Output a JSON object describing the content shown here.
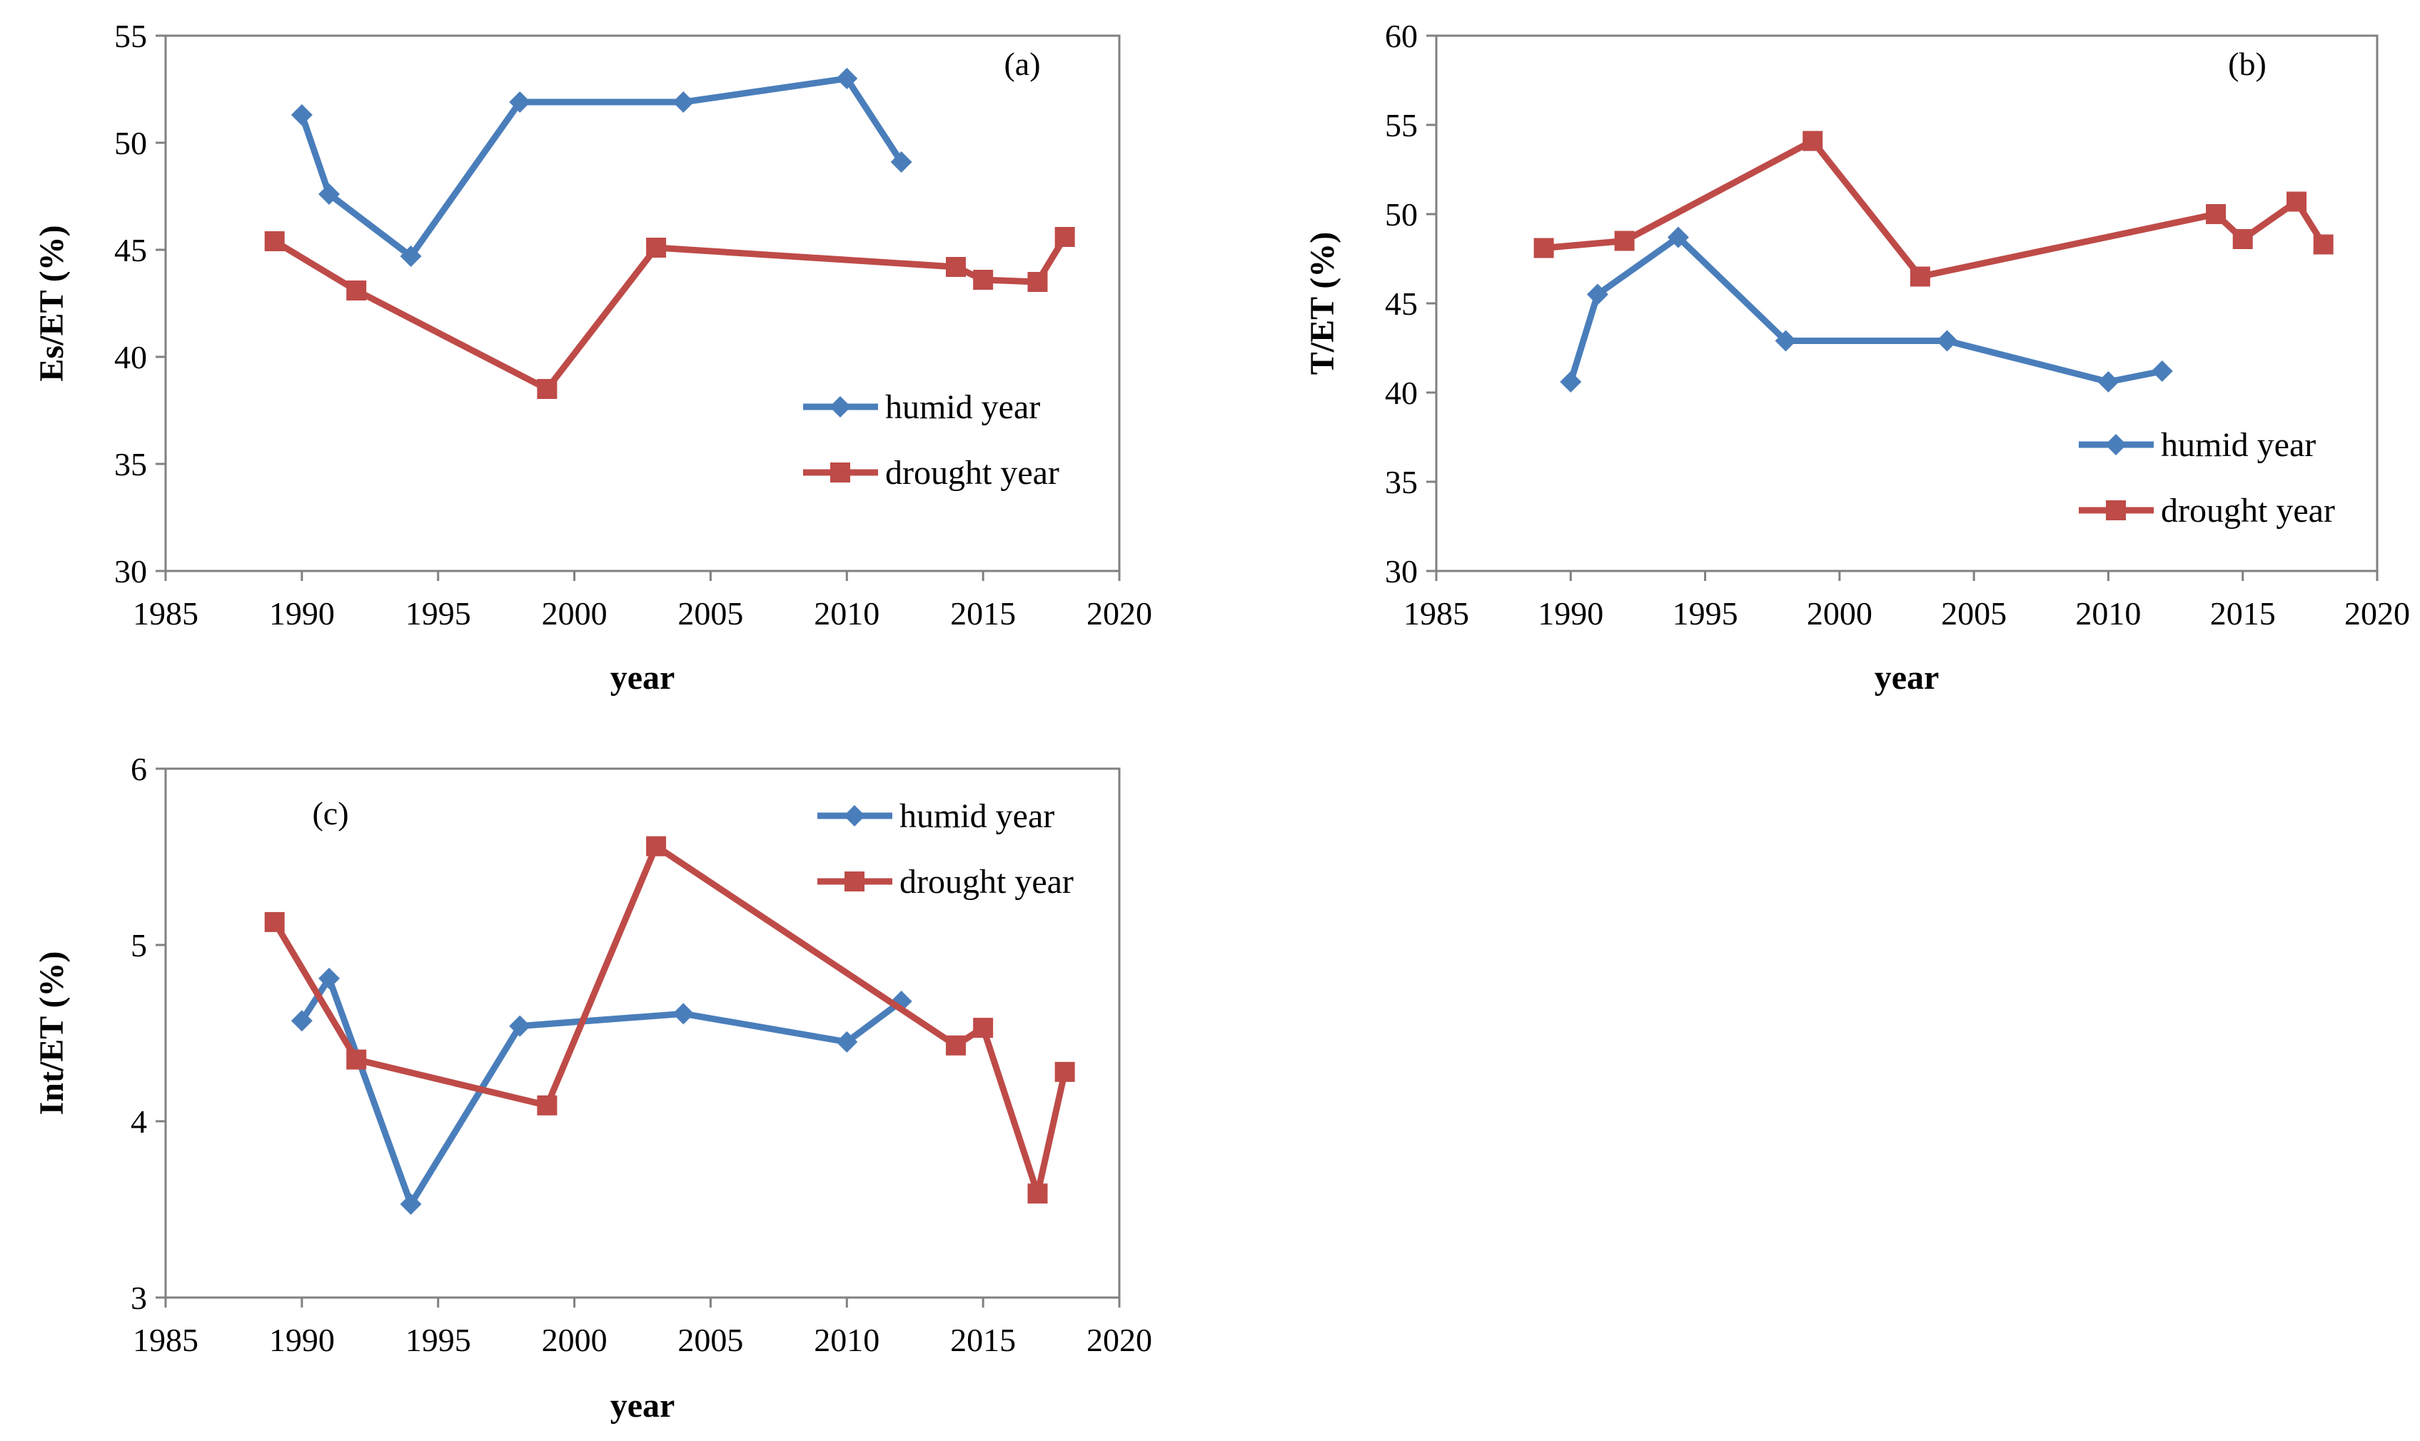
{
  "chart_data": [
    {
      "type": "line",
      "panel_label": "(a)",
      "xlabel": "year",
      "ylabel": "Es/ET (%)",
      "xlim": [
        1985,
        2020
      ],
      "ylim": [
        30,
        55
      ],
      "xticks": [
        1985,
        1990,
        1995,
        2000,
        2005,
        2010,
        2015,
        2020
      ],
      "yticks": [
        30,
        35,
        40,
        45,
        50,
        55
      ],
      "legend_position": "bottom-right",
      "series": [
        {
          "name": "humid year",
          "color": "#4a7ebb",
          "marker": "diamond",
          "x": [
            1990,
            1991,
            1994,
            1998,
            2004,
            2010,
            2012
          ],
          "y": [
            51.3,
            47.6,
            44.7,
            51.9,
            51.9,
            53.0,
            49.1
          ]
        },
        {
          "name": "drought year",
          "color": "#be4b48",
          "marker": "square",
          "x": [
            1989,
            1992,
            1999,
            2003,
            2014,
            2015,
            2017,
            2018
          ],
          "y": [
            45.4,
            43.1,
            38.5,
            45.1,
            44.2,
            43.6,
            43.5,
            45.6
          ]
        }
      ]
    },
    {
      "type": "line",
      "panel_label": "(b)",
      "xlabel": "year",
      "ylabel": "T/ET (%)",
      "xlim": [
        1985,
        2020
      ],
      "ylim": [
        30,
        60
      ],
      "xticks": [
        1985,
        1990,
        1995,
        2000,
        2005,
        2010,
        2015,
        2020
      ],
      "yticks": [
        30,
        35,
        40,
        45,
        50,
        55,
        60
      ],
      "legend_position": "bottom-right",
      "series": [
        {
          "name": "humid year",
          "color": "#4a7ebb",
          "marker": "diamond",
          "x": [
            1990,
            1991,
            1994,
            1998,
            2004,
            2010,
            2012
          ],
          "y": [
            40.6,
            45.5,
            48.7,
            42.9,
            42.9,
            40.6,
            41.2
          ]
        },
        {
          "name": "drought year",
          "color": "#be4b48",
          "marker": "square",
          "x": [
            1989,
            1992,
            1999,
            2003,
            2014,
            2015,
            2017,
            2018
          ],
          "y": [
            48.1,
            48.5,
            54.1,
            46.5,
            50.0,
            48.6,
            50.7,
            48.3
          ]
        }
      ]
    },
    {
      "type": "line",
      "panel_label": "(c)",
      "xlabel": "year",
      "ylabel": "Int/ET (%)",
      "xlim": [
        1985,
        2020
      ],
      "ylim": [
        3,
        6
      ],
      "xticks": [
        1985,
        1990,
        1995,
        2000,
        2005,
        2010,
        2015,
        2020
      ],
      "yticks": [
        3,
        4,
        5,
        6
      ],
      "legend_position": "top-right",
      "series": [
        {
          "name": "humid year",
          "color": "#4a7ebb",
          "marker": "diamond",
          "x": [
            1990,
            1991,
            1994,
            1998,
            2004,
            2010,
            2012
          ],
          "y": [
            4.57,
            4.81,
            3.53,
            4.54,
            4.61,
            4.45,
            4.68
          ]
        },
        {
          "name": "drought year",
          "color": "#be4b48",
          "marker": "square",
          "x": [
            1989,
            1992,
            1999,
            2003,
            2014,
            2015,
            2017,
            2018
          ],
          "y": [
            5.13,
            4.35,
            4.09,
            5.56,
            4.43,
            4.53,
            3.59,
            4.28
          ]
        }
      ]
    }
  ]
}
